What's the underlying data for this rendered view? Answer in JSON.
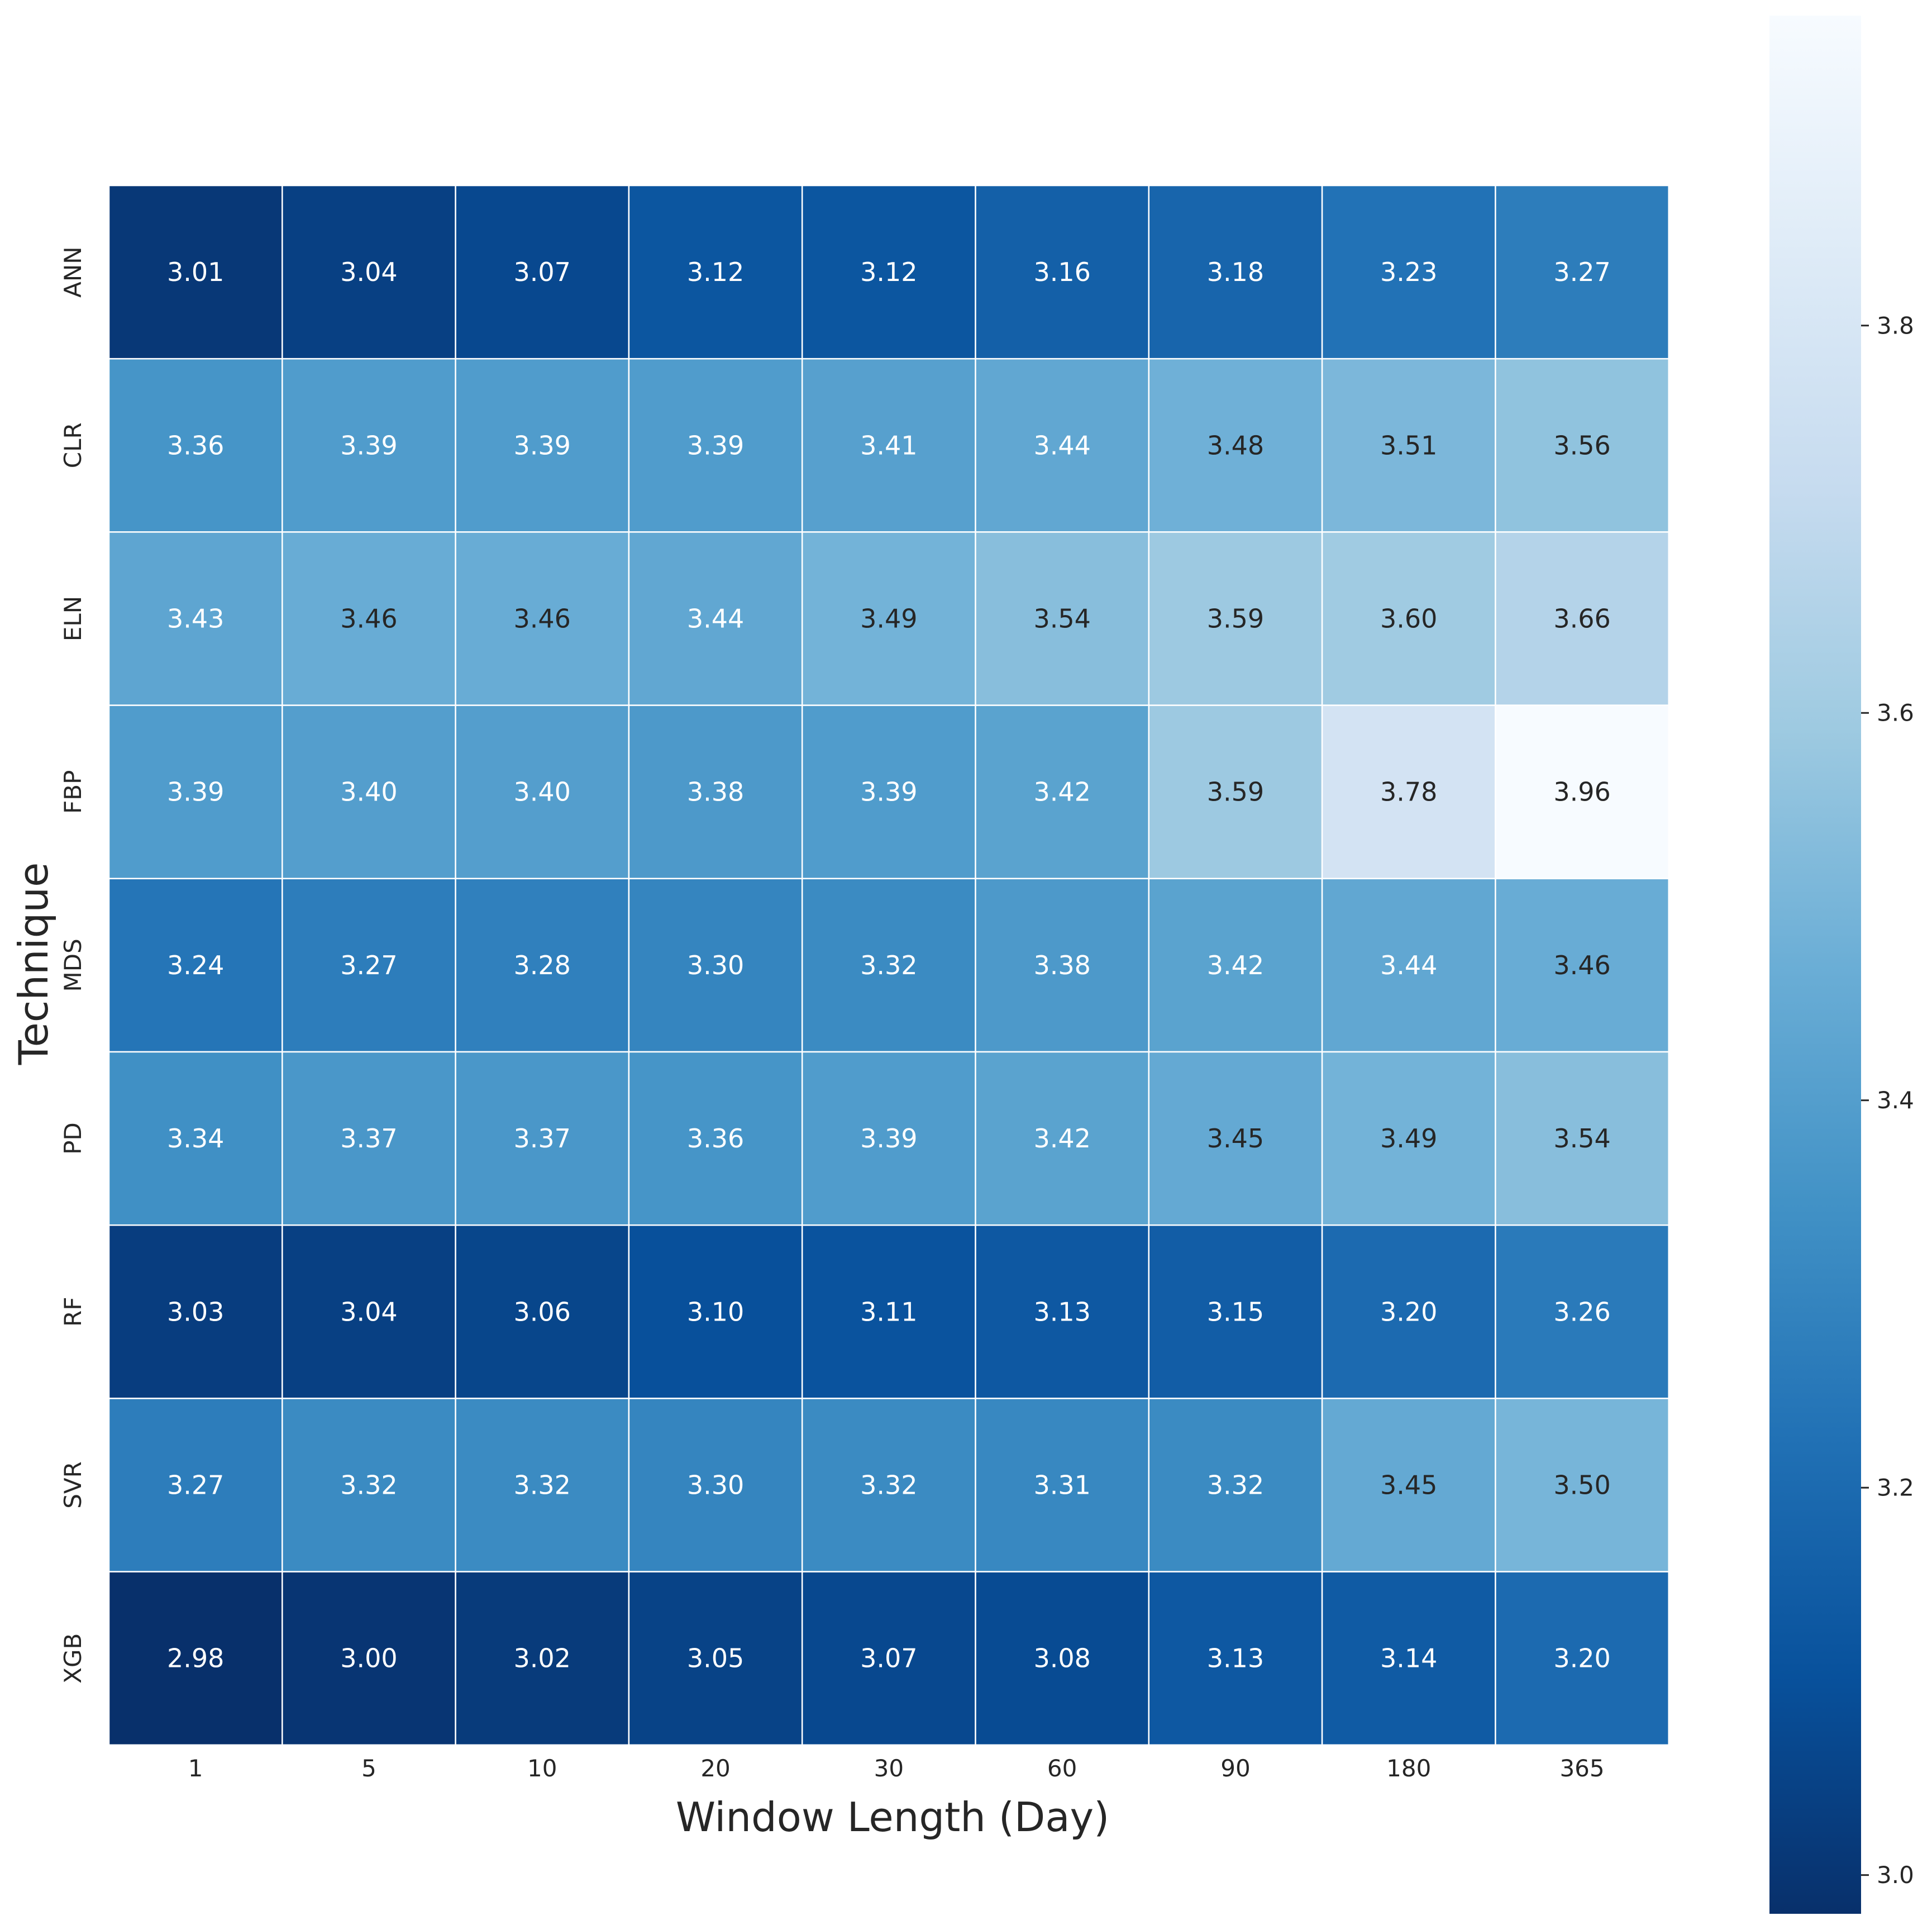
{
  "chart_data": {
    "type": "heatmap",
    "xlabel": "Window Length (Day)",
    "ylabel": "Technique",
    "x_categories": [
      "1",
      "5",
      "10",
      "20",
      "30",
      "60",
      "90",
      "180",
      "365"
    ],
    "y_categories": [
      "ANN",
      "CLR",
      "ELN",
      "FBP",
      "MDS",
      "PD",
      "RF",
      "SVR",
      "XGB"
    ],
    "values": [
      [
        3.01,
        3.04,
        3.07,
        3.12,
        3.12,
        3.16,
        3.18,
        3.23,
        3.27
      ],
      [
        3.36,
        3.39,
        3.39,
        3.39,
        3.41,
        3.44,
        3.48,
        3.51,
        3.56
      ],
      [
        3.43,
        3.46,
        3.46,
        3.44,
        3.49,
        3.54,
        3.59,
        3.6,
        3.66
      ],
      [
        3.39,
        3.4,
        3.4,
        3.38,
        3.39,
        3.42,
        3.59,
        3.78,
        3.96
      ],
      [
        3.24,
        3.27,
        3.28,
        3.3,
        3.32,
        3.38,
        3.42,
        3.44,
        3.46
      ],
      [
        3.34,
        3.37,
        3.37,
        3.36,
        3.39,
        3.42,
        3.45,
        3.49,
        3.54
      ],
      [
        3.03,
        3.04,
        3.06,
        3.1,
        3.11,
        3.13,
        3.15,
        3.2,
        3.26
      ],
      [
        3.27,
        3.32,
        3.32,
        3.3,
        3.32,
        3.31,
        3.32,
        3.45,
        3.5
      ],
      [
        2.98,
        3.0,
        3.02,
        3.05,
        3.07,
        3.08,
        3.13,
        3.14,
        3.2
      ]
    ],
    "value_format_decimals": 2,
    "colormap": "Blues_r",
    "colormap_stops": [
      "#08306b",
      "#08519c",
      "#2171b5",
      "#4292c6",
      "#6baed6",
      "#9ecae1",
      "#c6dbef",
      "#deebf7",
      "#f7fbff"
    ],
    "color_range": [
      2.98,
      3.96
    ],
    "colorbar_ticks": [
      "3.0",
      "3.2",
      "3.4",
      "3.6",
      "3.8"
    ],
    "cell_border_color": "#ffffff",
    "annotation_colors": {
      "on_dark": "#ffffff",
      "on_light": "#262626"
    }
  }
}
